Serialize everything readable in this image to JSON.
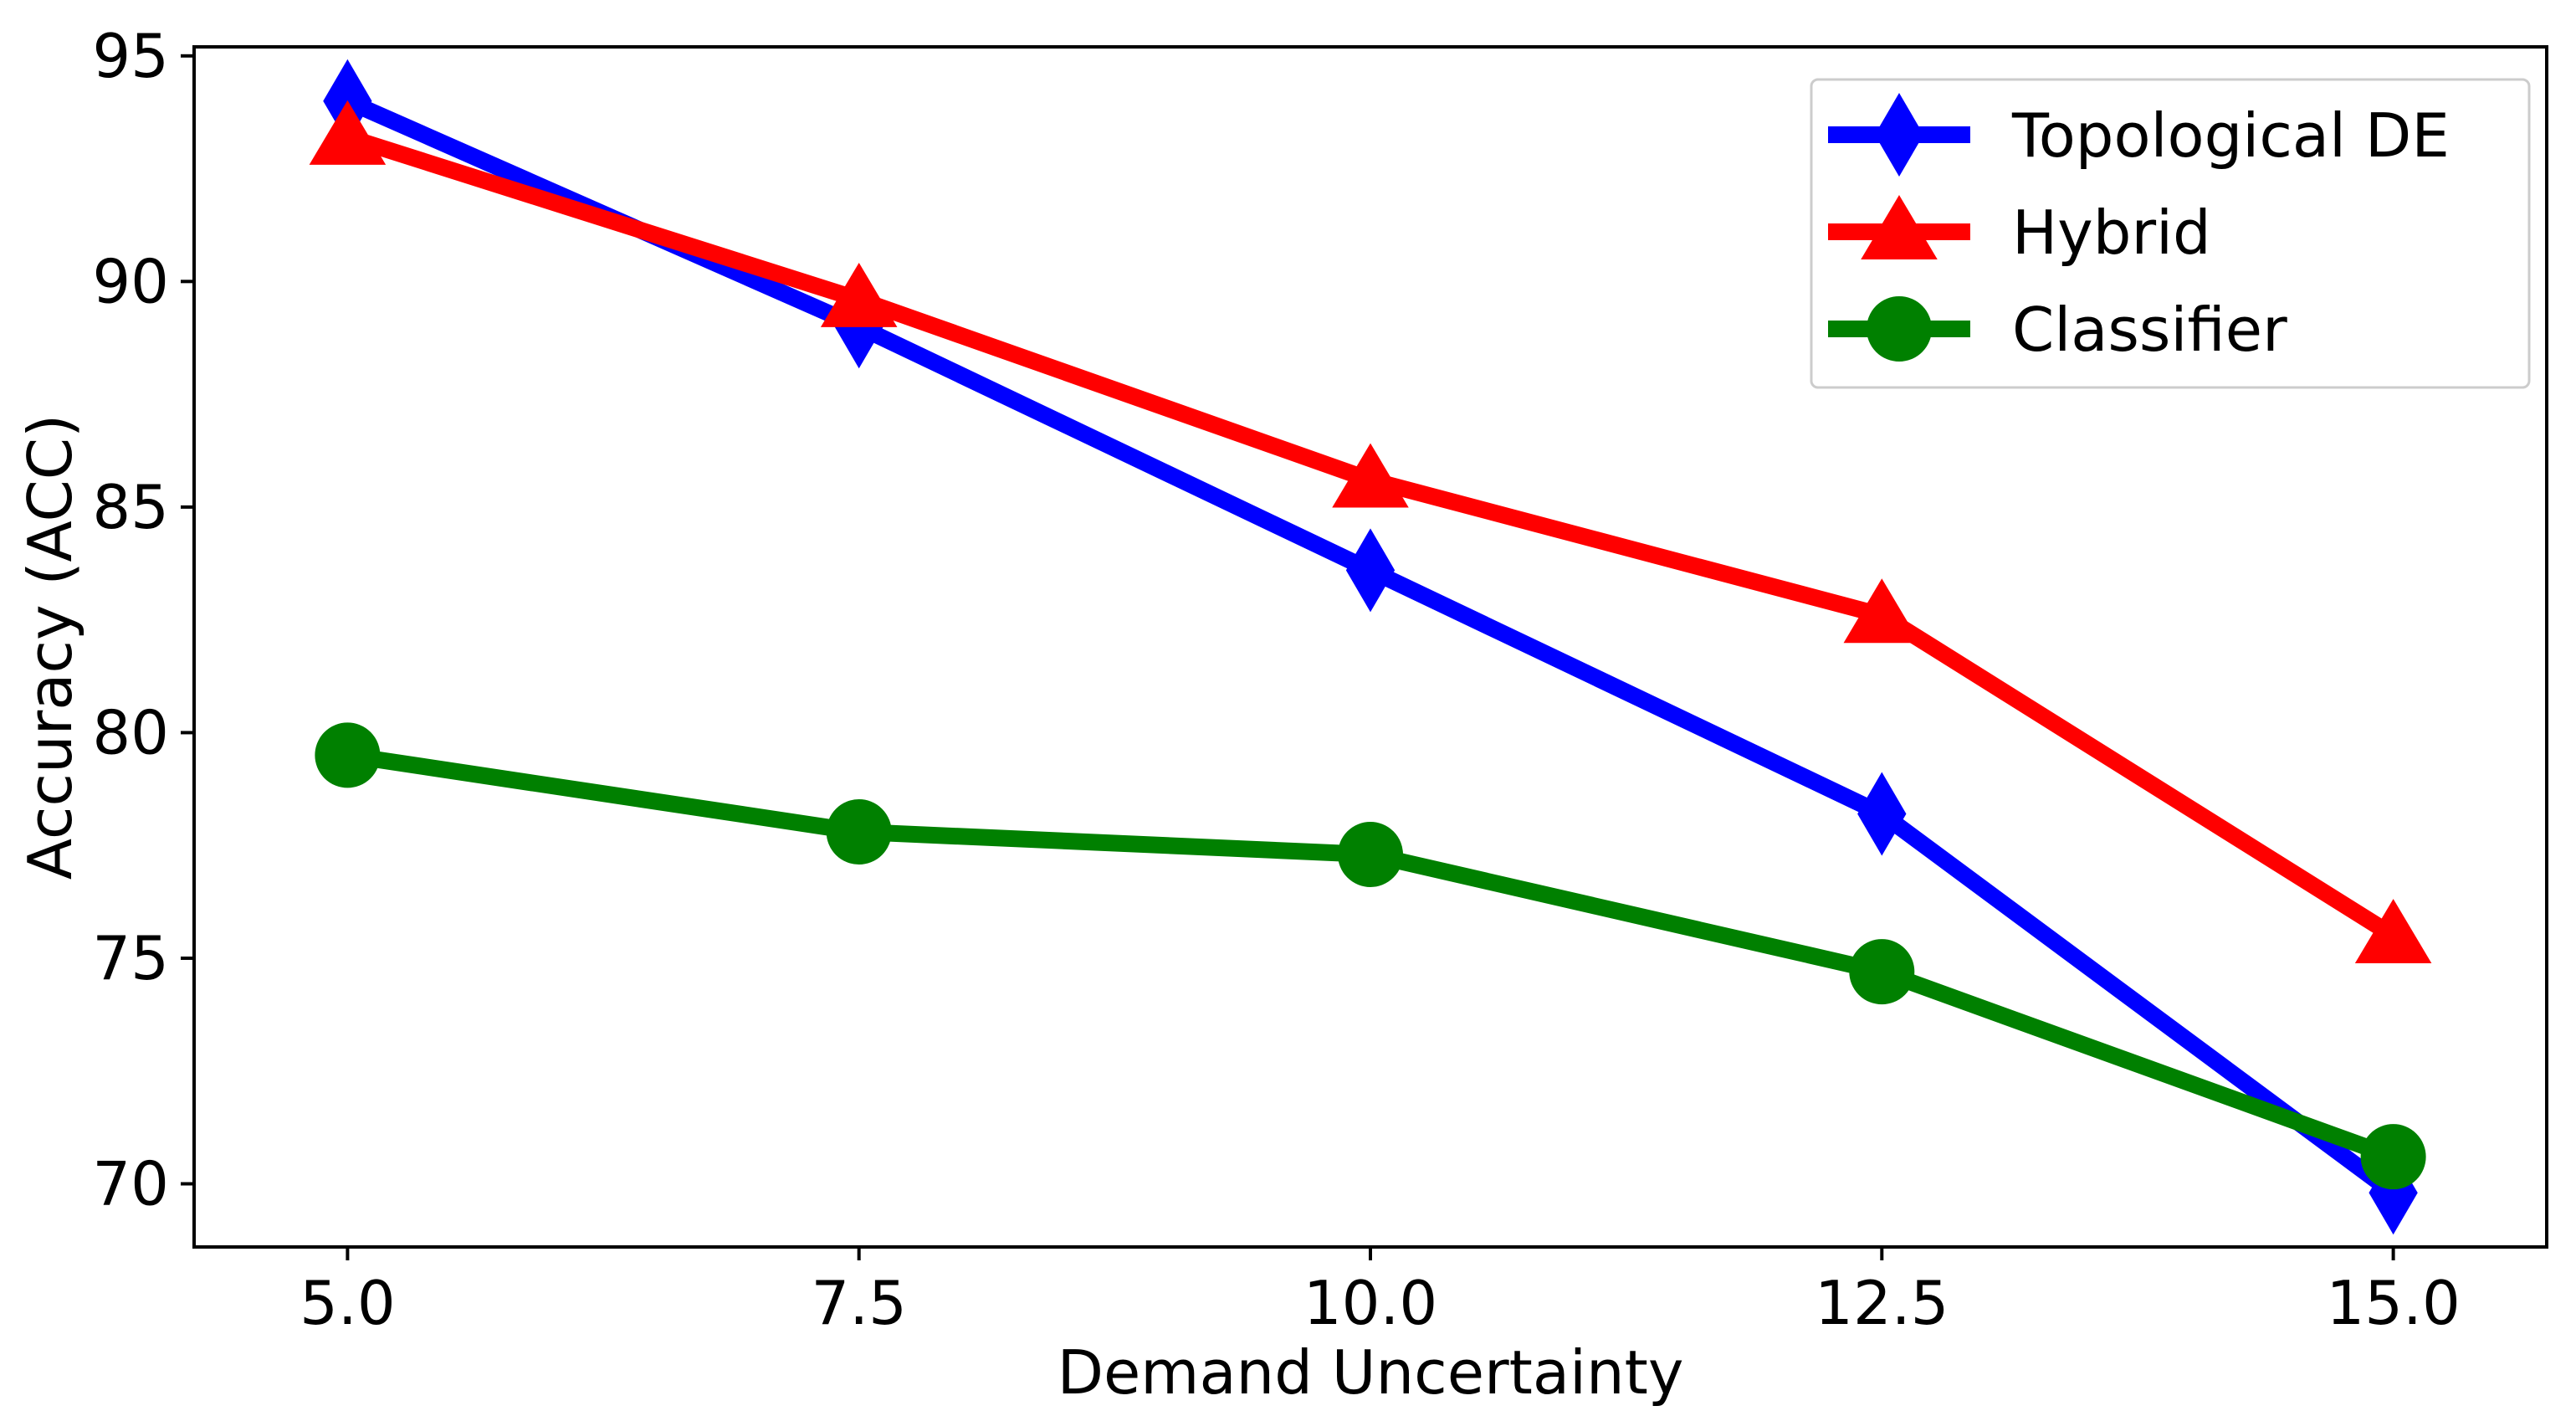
{
  "chart_data": {
    "type": "line",
    "title": "",
    "xlabel": "Demand Uncertainty",
    "ylabel": "Accuracy (ACC)",
    "x": [
      5.0,
      7.5,
      10.0,
      12.5,
      15.0
    ],
    "xlim": [
      4.25,
      15.75
    ],
    "ylim": [
      68.6,
      95.2
    ],
    "xticks": [
      5.0,
      7.5,
      10.0,
      12.5,
      15.0
    ],
    "xtick_labels": [
      "5.0",
      "7.5",
      "10.0",
      "12.5",
      "15.0"
    ],
    "yticks": [
      70,
      75,
      80,
      85,
      90,
      95
    ],
    "ytick_labels": [
      "70",
      "75",
      "80",
      "85",
      "90",
      "95"
    ],
    "grid": false,
    "legend_position": "top-right",
    "series": [
      {
        "name": "Topological DE",
        "color": "#0000ff",
        "marker": "diamond",
        "values": [
          94.0,
          89.0,
          83.6,
          78.2,
          69.8
        ]
      },
      {
        "name": "Hybrid",
        "color": "#ff0000",
        "marker": "triangle",
        "values": [
          93.2,
          89.6,
          85.6,
          82.6,
          75.5
        ]
      },
      {
        "name": "Classifier",
        "color": "#008000",
        "marker": "circle",
        "values": [
          79.5,
          77.8,
          77.3,
          74.7,
          70.6
        ]
      }
    ]
  }
}
